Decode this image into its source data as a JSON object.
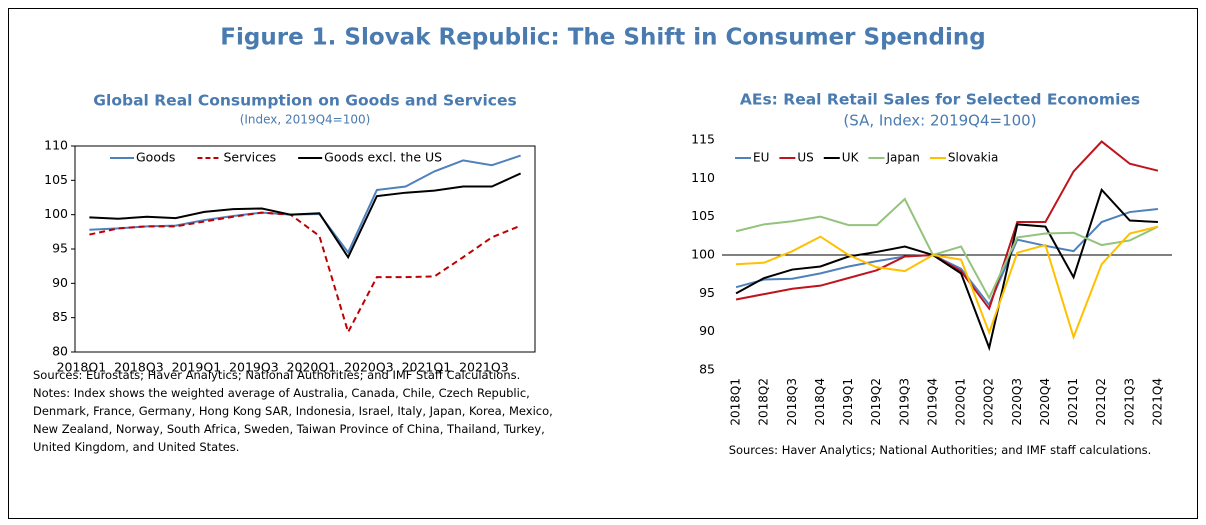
{
  "title": "Figure 1. Slovak Republic: The Shift in Consumer Spending",
  "chart_data": [
    {
      "type": "line",
      "title": "Global Real Consumption on Goods and Services",
      "subtitle": "(Index, 2019Q4=100)",
      "categories": [
        "2018Q1",
        null,
        "2018Q3",
        null,
        "2019Q1",
        null,
        "2019Q3",
        null,
        "2020Q1",
        null,
        "2020Q3",
        null,
        "2021Q1",
        null,
        "2021Q3",
        null
      ],
      "series": [
        {
          "name": "Goods",
          "color": "#4f81bd",
          "linestyle": "solid",
          "values": [
            97.8,
            98.0,
            98.3,
            98.4,
            99.2,
            99.8,
            100.3,
            100.0,
            100.1,
            94.5,
            103.6,
            104.1,
            106.3,
            107.9,
            107.2,
            108.6
          ]
        },
        {
          "name": "Services",
          "color": "#c00000",
          "linestyle": "dashed",
          "values": [
            97.1,
            98.0,
            98.3,
            98.3,
            99.0,
            99.7,
            100.3,
            100.0,
            96.9,
            82.9,
            90.9,
            90.9,
            91.0,
            93.8,
            96.7,
            98.4
          ]
        },
        {
          "name": "Goods excl. the US",
          "color": "#000000",
          "linestyle": "solid",
          "values": [
            99.6,
            99.4,
            99.7,
            99.5,
            100.4,
            100.8,
            100.9,
            100.0,
            100.2,
            93.8,
            102.7,
            103.2,
            103.5,
            104.1,
            104.1,
            106.0
          ]
        }
      ],
      "ylim": [
        80,
        110
      ],
      "yticks": [
        80,
        85,
        90,
        95,
        100,
        105,
        110
      ],
      "legend": "upper left",
      "sources": "Sources: Eurostats; Haver Analytics; National Authorities; and IMF Staff Calculations.",
      "notes": "Notes: Index shows the weighted average of Australia, Canada, Chile, Czech Republic, Denmark, France, Germany, Hong Kong SAR, Indonesia, Israel, Italy, Japan, Korea, Mexico, New Zealand, Norway, South Africa, Sweden, Taiwan Province of China, Thailand, Turkey, United Kingdom, and United States."
    },
    {
      "type": "line",
      "title": "AEs: Real Retail Sales for Selected Economies",
      "subtitle": "(SA,  Index: 2019Q4=100)",
      "categories": [
        "2018Q1",
        "2018Q2",
        "2018Q3",
        "2018Q4",
        "2019Q1",
        "2019Q2",
        "2019Q3",
        "2019Q4",
        "2020Q1",
        "2020Q2",
        "2020Q3",
        "2020Q4",
        "2021Q1",
        "2021Q2",
        "2021Q3",
        "2021Q4"
      ],
      "series": [
        {
          "name": "EU",
          "color": "#4f81bd",
          "linestyle": "solid",
          "values": [
            95.8,
            96.8,
            96.9,
            97.6,
            98.5,
            99.2,
            99.8,
            100,
            98.2,
            93.5,
            102.0,
            101.2,
            100.5,
            104.3,
            105.6,
            106.0
          ]
        },
        {
          "name": "US",
          "color": "#c0141c",
          "linestyle": "solid",
          "values": [
            94.2,
            94.9,
            95.6,
            96.0,
            97.0,
            98.0,
            99.8,
            100,
            97.9,
            93.0,
            104.3,
            104.3,
            110.9,
            114.8,
            111.9,
            111.0
          ]
        },
        {
          "name": "UK",
          "color": "#000000",
          "linestyle": "solid",
          "values": [
            95.0,
            97.0,
            98.1,
            98.5,
            99.8,
            100.4,
            101.1,
            100,
            97.6,
            87.9,
            104.0,
            103.7,
            97.1,
            108.5,
            104.5,
            104.3
          ]
        },
        {
          "name": "Japan",
          "color": "#92c47d",
          "linestyle": "solid",
          "values": [
            103.1,
            104.0,
            104.4,
            105.0,
            103.9,
            103.9,
            107.3,
            100,
            101.1,
            94.4,
            102.3,
            102.8,
            102.9,
            101.3,
            101.9,
            103.7
          ]
        },
        {
          "name": "Slovakia",
          "color": "#ffc000",
          "linestyle": "solid",
          "values": [
            98.8,
            99.0,
            100.5,
            102.4,
            100.0,
            98.4,
            97.9,
            100,
            99.4,
            89.9,
            100.3,
            101.3,
            89.3,
            98.8,
            102.8,
            103.7
          ]
        }
      ],
      "ylim": [
        85,
        115
      ],
      "yticks": [
        85,
        90,
        95,
        100,
        105,
        110,
        115
      ],
      "reference_line": 100,
      "legend": "upper left",
      "sources": "Sources: Haver Analytics; National Authorities; and IMF staff calculations."
    }
  ]
}
